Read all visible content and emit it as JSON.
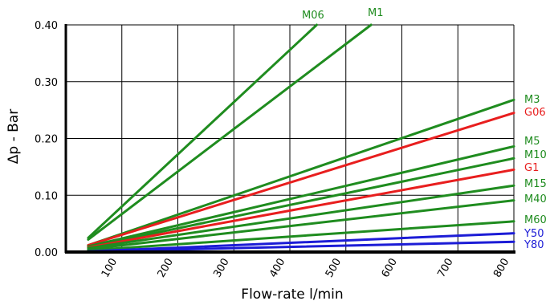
{
  "chart_data": {
    "type": "line",
    "title": "",
    "xlabel": "Flow-rate l/min",
    "ylabel": "Δp - Bar",
    "xlim": [
      0,
      800
    ],
    "ylim": [
      0,
      0.4
    ],
    "x_ticks": [
      100,
      200,
      300,
      400,
      500,
      600,
      700,
      800
    ],
    "x_tick_labels": [
      "100",
      "200",
      "300",
      "400",
      "500",
      "600",
      "700",
      "800"
    ],
    "y_ticks": [
      0,
      0.1,
      0.2,
      0.3,
      0.4
    ],
    "y_tick_labels": [
      "0.00",
      "0.10",
      "0.20",
      "0.30",
      "0.40"
    ],
    "grid": true,
    "legend": "labels at line ends",
    "colors": {
      "green": "#1f8c1f",
      "red": "#e81e1e",
      "blue": "#1c1cd6"
    },
    "series": [
      {
        "name": "M06",
        "color": "green",
        "x": [
          40,
          448
        ],
        "y": [
          0.025,
          0.4
        ]
      },
      {
        "name": "M1",
        "color": "green",
        "x": [
          40,
          545
        ],
        "y": [
          0.022,
          0.4
        ]
      },
      {
        "name": "M3",
        "color": "green",
        "x": [
          40,
          800
        ],
        "y": [
          0.012,
          0.268
        ]
      },
      {
        "name": "G06",
        "color": "red",
        "x": [
          40,
          800
        ],
        "y": [
          0.012,
          0.245
        ]
      },
      {
        "name": "M5",
        "color": "green",
        "x": [
          40,
          800
        ],
        "y": [
          0.01,
          0.186
        ]
      },
      {
        "name": "M10",
        "color": "green",
        "x": [
          40,
          800
        ],
        "y": [
          0.009,
          0.165
        ]
      },
      {
        "name": "G1",
        "color": "red",
        "x": [
          40,
          800
        ],
        "y": [
          0.008,
          0.145
        ]
      },
      {
        "name": "M15",
        "color": "green",
        "x": [
          40,
          800
        ],
        "y": [
          0.007,
          0.117
        ]
      },
      {
        "name": "M40",
        "color": "green",
        "x": [
          40,
          800
        ],
        "y": [
          0.005,
          0.091
        ]
      },
      {
        "name": "M60",
        "color": "green",
        "x": [
          40,
          800
        ],
        "y": [
          0.003,
          0.054
        ]
      },
      {
        "name": "Y50",
        "color": "blue",
        "x": [
          40,
          800
        ],
        "y": [
          0.001,
          0.033
        ]
      },
      {
        "name": "Y80",
        "color": "blue",
        "x": [
          40,
          800
        ],
        "y": [
          0.001,
          0.018
        ]
      }
    ]
  }
}
